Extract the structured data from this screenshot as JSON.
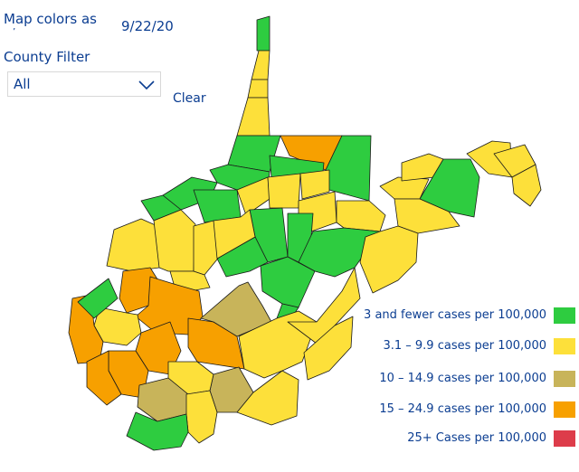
{
  "header": {
    "title": "Map colors as",
    "title_cut": "’",
    "date": "9/22/20"
  },
  "filter": {
    "label": "County Filter",
    "selected": "All",
    "clear_label": "Clear"
  },
  "colors": {
    "green": "#2ecc40",
    "yellow": "#fde03a",
    "olive": "#c8b45a",
    "orange": "#f7a000",
    "red": "#dd3c4a"
  },
  "legend": [
    {
      "label": "3 and fewer cases per 100,000",
      "color": "#2ecc40"
    },
    {
      "label": "3.1 – 9.9 cases per 100,000",
      "color": "#fde03a"
    },
    {
      "label": "10 – 14.9 cases per 100,000",
      "color": "#c8b45a"
    },
    {
      "label": "15 – 24.9 cases per 100,000",
      "color": "#f7a000"
    },
    {
      "label": "25+ Cases per 100,000",
      "color": "#dd3c4a"
    }
  ]
}
